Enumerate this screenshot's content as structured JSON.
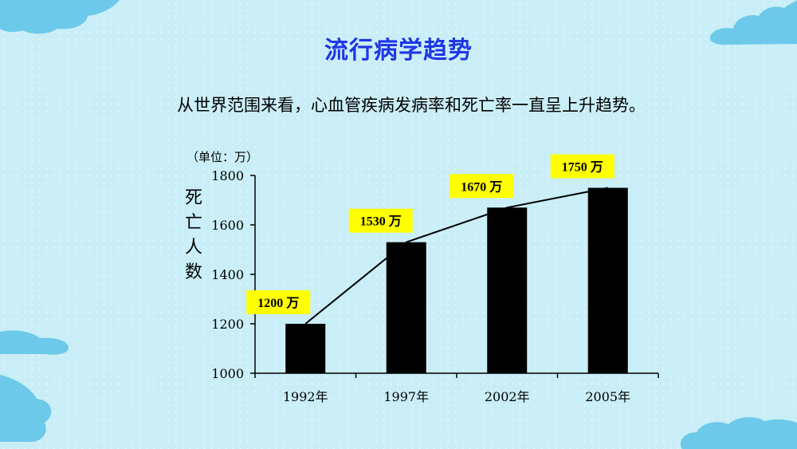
{
  "slide": {
    "title": "流行病学趋势",
    "subtitle": "从世界范围来看，心血管疾病发病率和死亡率一直呈上升趋势。"
  },
  "colors": {
    "background": "#c9eef7",
    "title": "#1f37e6",
    "bar": "#000000",
    "label_box": "#ffff00",
    "cloud": "#6cc9ea"
  },
  "chart_data": {
    "type": "bar",
    "categories": [
      "1992年",
      "1997年",
      "2002年",
      "2005年"
    ],
    "values": [
      1200,
      1530,
      1670,
      1750
    ],
    "data_labels": [
      "1200 万",
      "1530 万",
      "1670 万",
      "1750 万"
    ],
    "unit": "（单位：万）",
    "ylabel": "死亡人数",
    "ylim": [
      1000,
      1800
    ],
    "yticks": [
      1000,
      1200,
      1400,
      1600,
      1800
    ],
    "trend_line": true,
    "grid": false,
    "legend": "none"
  }
}
